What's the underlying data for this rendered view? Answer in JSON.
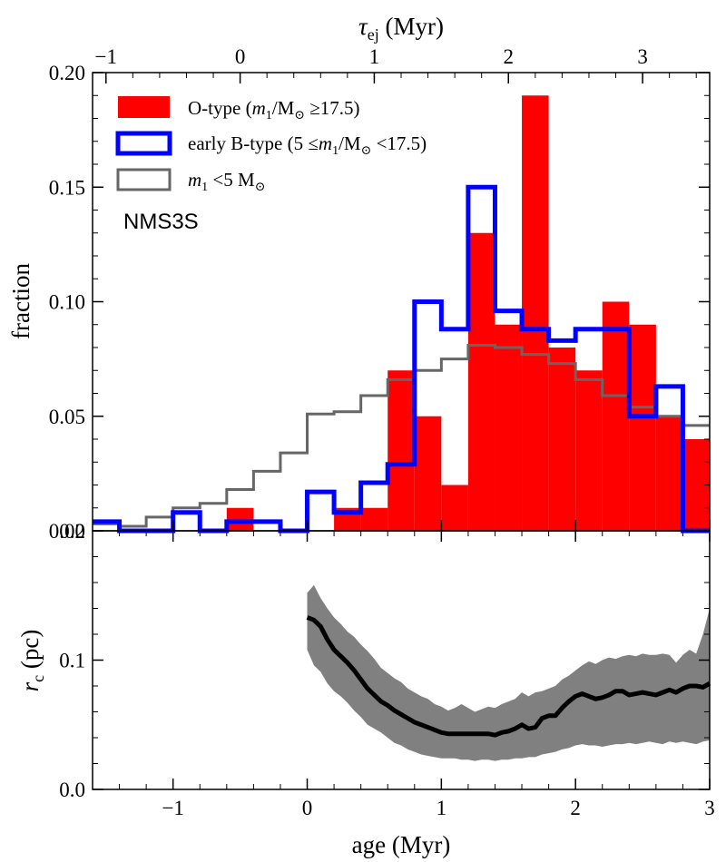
{
  "chart_data": [
    {
      "type": "histogram",
      "panel": "top",
      "annotation": "NMS3S",
      "ylabel": "fraction",
      "top_xlabel": "τej (Myr)",
      "top_xlabel_main": "τ",
      "top_xlabel_sub": "ej",
      "top_xlabel_unit": " (Myr)",
      "xlim": [
        -1.6,
        3.0
      ],
      "ylim": [
        0.0,
        0.2
      ],
      "bin_width": 0.2,
      "y_tick_labels": [
        "0.00",
        "0.05",
        "0.10",
        "0.15",
        "0.20"
      ],
      "top_tick_labels": [
        "−1",
        "0",
        "1",
        "2",
        "3"
      ],
      "top_tick_values": [
        -1.5,
        -0.5,
        0.5,
        1.5,
        2.5
      ],
      "series": [
        {
          "name": "O-type (m1/M☉ ≥17.5)",
          "legend_parts": [
            "O-type (",
            "m",
            "1",
            "/M",
            "⊙",
            " ≥17.5)"
          ],
          "style": "filled",
          "color": "#ff0000",
          "bin_starts": [
            -1.6,
            -1.4,
            -1.2,
            -1.0,
            -0.8,
            -0.6,
            -0.4,
            -0.2,
            0.0,
            0.2,
            0.4,
            0.6,
            0.8,
            1.0,
            1.2,
            1.4,
            1.6,
            1.8,
            2.0,
            2.2,
            2.4,
            2.6,
            2.8
          ],
          "values": [
            0.0,
            0.0,
            0.0,
            0.0,
            0.0,
            0.01,
            0.0,
            0.0,
            0.0,
            0.01,
            0.01,
            0.07,
            0.05,
            0.02,
            0.13,
            0.09,
            0.19,
            0.08,
            0.07,
            0.1,
            0.09,
            0.05,
            0.04
          ]
        },
        {
          "name": "early B-type (5 ≤m1/M☉ <17.5)",
          "legend_parts": [
            "early B-type (5 ≤",
            "m",
            "1",
            "/M",
            "⊙",
            " <17.5)"
          ],
          "style": "step",
          "color": "#0000ff",
          "bin_starts": [
            -1.6,
            -1.4,
            -1.2,
            -1.0,
            -0.8,
            -0.6,
            -0.4,
            -0.2,
            0.0,
            0.2,
            0.4,
            0.6,
            0.8,
            1.0,
            1.2,
            1.4,
            1.6,
            1.8,
            2.0,
            2.2,
            2.4,
            2.6,
            2.8
          ],
          "values": [
            0.004,
            0.0,
            0.0,
            0.008,
            0.0,
            0.004,
            0.004,
            0.0,
            0.017,
            0.008,
            0.021,
            0.029,
            0.1,
            0.088,
            0.15,
            0.096,
            0.088,
            0.083,
            0.088,
            0.088,
            0.05,
            0.063,
            0.0
          ]
        },
        {
          "name": "m1 <5 M☉",
          "legend_parts": [
            "",
            "m",
            "1",
            " <5 M",
            "⊙",
            ""
          ],
          "style": "step",
          "color": "#666666",
          "bin_starts": [
            -1.6,
            -1.4,
            -1.2,
            -1.0,
            -0.8,
            -0.6,
            -0.4,
            -0.2,
            0.0,
            0.2,
            0.4,
            0.6,
            0.8,
            1.0,
            1.2,
            1.4,
            1.6,
            1.8,
            2.0,
            2.2,
            2.4,
            2.6,
            2.8
          ],
          "values": [
            0.003,
            0.002,
            0.006,
            0.01,
            0.012,
            0.018,
            0.026,
            0.034,
            0.051,
            0.052,
            0.059,
            0.066,
            0.07,
            0.075,
            0.081,
            0.08,
            0.077,
            0.073,
            0.066,
            0.059,
            0.054,
            0.05,
            0.046
          ]
        }
      ]
    },
    {
      "type": "line",
      "panel": "bottom",
      "xlabel": "age (Myr)",
      "ylabel": "rc (pc)",
      "ylabel_main": "r",
      "ylabel_sub": "c",
      "ylabel_unit": " (pc)",
      "xlim": [
        -1.6,
        3.0
      ],
      "ylim": [
        0.0,
        0.2
      ],
      "x_tick_labels": [
        "−1",
        "0",
        "1",
        "2",
        "3"
      ],
      "x_tick_values": [
        -1,
        0,
        1,
        2,
        3
      ],
      "y_tick_labels": [
        "0.0",
        "0.1",
        "0.2"
      ],
      "x": [
        0.0,
        0.05,
        0.1,
        0.15,
        0.2,
        0.25,
        0.3,
        0.35,
        0.4,
        0.45,
        0.5,
        0.55,
        0.6,
        0.65,
        0.7,
        0.75,
        0.8,
        0.85,
        0.9,
        0.95,
        1.0,
        1.05,
        1.1,
        1.15,
        1.2,
        1.25,
        1.3,
        1.35,
        1.4,
        1.45,
        1.5,
        1.55,
        1.6,
        1.65,
        1.7,
        1.75,
        1.8,
        1.85,
        1.9,
        1.95,
        2.0,
        2.05,
        2.1,
        2.15,
        2.2,
        2.25,
        2.3,
        2.35,
        2.4,
        2.45,
        2.5,
        2.55,
        2.6,
        2.65,
        2.7,
        2.75,
        2.8,
        2.85,
        2.9,
        2.95,
        3.0
      ],
      "median": [
        0.133,
        0.131,
        0.126,
        0.116,
        0.108,
        0.103,
        0.098,
        0.092,
        0.085,
        0.078,
        0.073,
        0.068,
        0.065,
        0.061,
        0.058,
        0.055,
        0.052,
        0.05,
        0.048,
        0.046,
        0.044,
        0.043,
        0.043,
        0.043,
        0.043,
        0.043,
        0.043,
        0.043,
        0.042,
        0.044,
        0.045,
        0.047,
        0.05,
        0.047,
        0.048,
        0.055,
        0.057,
        0.057,
        0.063,
        0.068,
        0.072,
        0.074,
        0.072,
        0.07,
        0.071,
        0.073,
        0.076,
        0.076,
        0.073,
        0.074,
        0.075,
        0.074,
        0.073,
        0.075,
        0.077,
        0.075,
        0.078,
        0.08,
        0.08,
        0.079,
        0.082
      ],
      "upper": [
        0.152,
        0.158,
        0.148,
        0.14,
        0.133,
        0.128,
        0.122,
        0.118,
        0.112,
        0.107,
        0.101,
        0.094,
        0.09,
        0.086,
        0.083,
        0.078,
        0.075,
        0.072,
        0.07,
        0.066,
        0.064,
        0.061,
        0.063,
        0.066,
        0.063,
        0.06,
        0.062,
        0.064,
        0.063,
        0.066,
        0.068,
        0.07,
        0.075,
        0.072,
        0.075,
        0.076,
        0.078,
        0.08,
        0.085,
        0.088,
        0.092,
        0.096,
        0.099,
        0.097,
        0.1,
        0.102,
        0.101,
        0.103,
        0.104,
        0.103,
        0.105,
        0.104,
        0.104,
        0.105,
        0.104,
        0.098,
        0.104,
        0.108,
        0.105,
        0.12,
        0.14
      ],
      "lower": [
        0.108,
        0.096,
        0.091,
        0.082,
        0.076,
        0.072,
        0.067,
        0.061,
        0.056,
        0.05,
        0.047,
        0.044,
        0.04,
        0.036,
        0.034,
        0.031,
        0.029,
        0.027,
        0.026,
        0.025,
        0.024,
        0.024,
        0.024,
        0.023,
        0.023,
        0.022,
        0.023,
        0.023,
        0.022,
        0.023,
        0.023,
        0.024,
        0.024,
        0.025,
        0.025,
        0.027,
        0.028,
        0.029,
        0.031,
        0.032,
        0.034,
        0.035,
        0.034,
        0.034,
        0.033,
        0.034,
        0.035,
        0.035,
        0.036,
        0.035,
        0.036,
        0.037,
        0.036,
        0.035,
        0.037,
        0.036,
        0.037,
        0.036,
        0.035,
        0.037,
        0.038
      ],
      "line_color": "#000000",
      "band_color": "#808080"
    }
  ]
}
